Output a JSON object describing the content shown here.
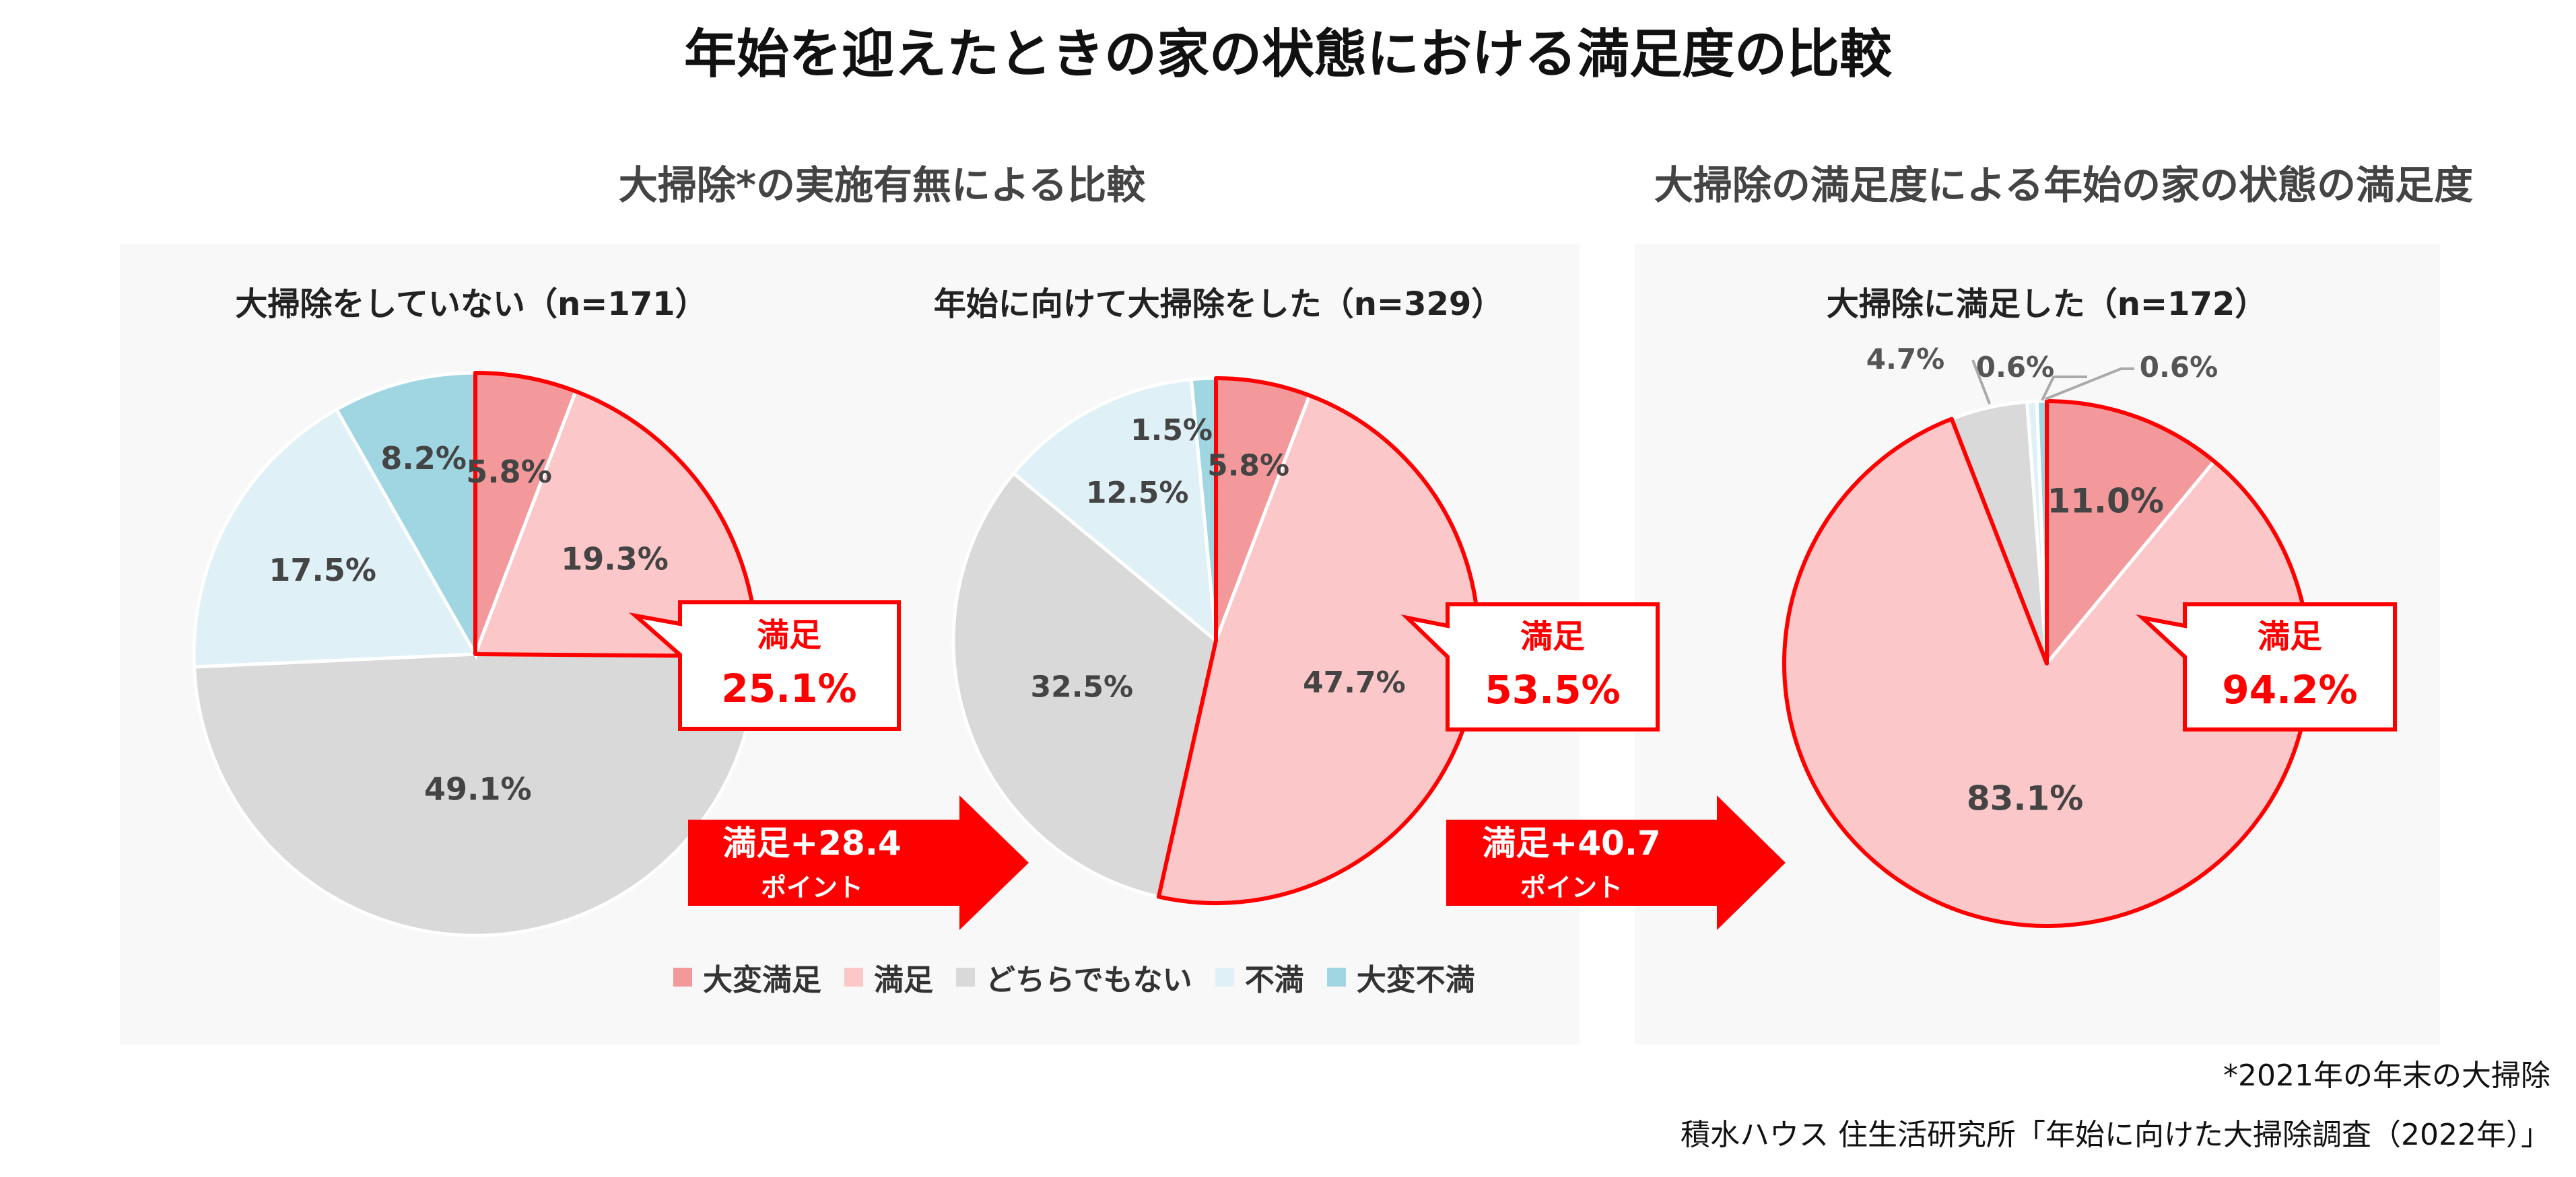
{
  "title": "年始を迎えたときの家の状態における満足度の比較",
  "sections": {
    "left": "大掃除*の実施有無による比較",
    "right": "大掃除の満足度による年始の家の状態の満足度"
  },
  "colors": {
    "very_satisfied": "#f4999b",
    "satisfied": "#fbc7c8",
    "neutral": "#d9d9d9",
    "dissatisfied": "#dff1f6",
    "very_dissatisfied": "#9fd6e2",
    "accent_red": "#ff0000"
  },
  "legend": [
    {
      "label": "大変満足",
      "color": "#f4999b"
    },
    {
      "label": "満足",
      "color": "#fbc7c8"
    },
    {
      "label": "どちらでもない",
      "color": "#d9d9d9"
    },
    {
      "label": "不満",
      "color": "#dff1f6"
    },
    {
      "label": "大変不満",
      "color": "#9fd6e2"
    }
  ],
  "chart_data": [
    {
      "type": "pie",
      "title": "大掃除をしていない（n=171）",
      "slices": [
        {
          "label": "大変満足",
          "value": 5.8,
          "display": "5.8%"
        },
        {
          "label": "満足",
          "value": 19.3,
          "display": "19.3%"
        },
        {
          "label": "どちらでもない",
          "value": 49.1,
          "display": "49.1%"
        },
        {
          "label": "不満",
          "value": 17.5,
          "display": "17.5%"
        },
        {
          "label": "大変不満",
          "value": 8.2,
          "display": "8.2%"
        }
      ],
      "callout": {
        "label": "満足",
        "value": "25.1%"
      }
    },
    {
      "type": "pie",
      "title": "年始に向けて大掃除をした（n=329）",
      "slices": [
        {
          "label": "大変満足",
          "value": 5.8,
          "display": "5.8%"
        },
        {
          "label": "満足",
          "value": 47.7,
          "display": "47.7%"
        },
        {
          "label": "どちらでもない",
          "value": 32.5,
          "display": "32.5%"
        },
        {
          "label": "不満",
          "value": 12.5,
          "display": "12.5%"
        },
        {
          "label": "大変不満",
          "value": 1.5,
          "display": "1.5%"
        }
      ],
      "callout": {
        "label": "満足",
        "value": "53.5%"
      }
    },
    {
      "type": "pie",
      "title": "大掃除に満足した（n=172）",
      "slices": [
        {
          "label": "大変満足",
          "value": 11.0,
          "display": "11.0%"
        },
        {
          "label": "満足",
          "value": 83.1,
          "display": "83.1%"
        },
        {
          "label": "どちらでもない",
          "value": 4.7,
          "display": "4.7%"
        },
        {
          "label": "不満",
          "value": 0.6,
          "display": "0.6%"
        },
        {
          "label": "大変不満",
          "value": 0.6,
          "display": "0.6%"
        }
      ],
      "callout": {
        "label": "満足",
        "value": "94.2%"
      }
    }
  ],
  "arrows": [
    {
      "line1": "満足+28.4",
      "line2": "ポイント"
    },
    {
      "line1": "満足+40.7",
      "line2": "ポイント"
    }
  ],
  "footnote": "*2021年の年末の大掃除",
  "source": "積水ハウス 住生活研究所「年始に向けた大掃除調査（2022年）」"
}
